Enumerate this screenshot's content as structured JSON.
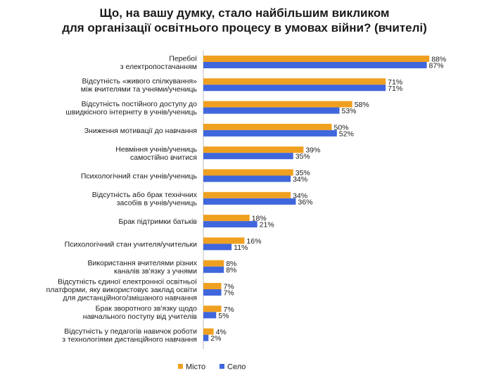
{
  "colors": {
    "misto": "#F0A020",
    "selo": "#3F66DC",
    "axis": "#bdbdbd"
  },
  "chart_data": {
    "type": "bar",
    "orientation": "horizontal",
    "title": [
      "Що, на вашу думку, стало найбільшим викликом",
      "для організації освітнього процесу в умовах війни? (вчителі)"
    ],
    "categories": [
      [
        "Перебої",
        "з електропостачанням"
      ],
      [
        "Відсутність «живого спілкування»",
        "між вчителями та учнями/учениць"
      ],
      [
        "Відсутність постійного доступу до",
        "швидкісного інтернету в учнів/учениць"
      ],
      [
        "Зниження мотивації до навчання"
      ],
      [
        "Невміння учнів/учениць",
        "самостійно вчитися"
      ],
      [
        "Психологічний стан учнів/учениць"
      ],
      [
        "Відсутність або брак технічних",
        "засобів в учнів/учениць"
      ],
      [
        "Брак підтримки батьків"
      ],
      [
        "Психологічний стан учителя/учительки"
      ],
      [
        "Використання вчителями різних",
        "каналів зв'язку з учнями"
      ],
      [
        "Відсутність єдиної електронної освітньої",
        "платформи, яку використовує заклад освіти",
        "для дистанційного/змішаного навчання"
      ],
      [
        "Брак зворотного зв'язку щодо",
        "навчального поступу від учителів"
      ],
      [
        "Відсутність у педагогів навичок роботи",
        "з технологіями дистанційного навчання"
      ]
    ],
    "series": [
      {
        "name": "Місто",
        "values": [
          88,
          71,
          58,
          50,
          39,
          35,
          34,
          18,
          16,
          8,
          7,
          7,
          4
        ]
      },
      {
        "name": "Село",
        "values": [
          87,
          71,
          53,
          52,
          35,
          34,
          36,
          21,
          11,
          8,
          7,
          5,
          2
        ]
      }
    ],
    "value_suffix": "%",
    "xlim": [
      0,
      100
    ],
    "grid": false,
    "legend_position": "bottom-center"
  }
}
